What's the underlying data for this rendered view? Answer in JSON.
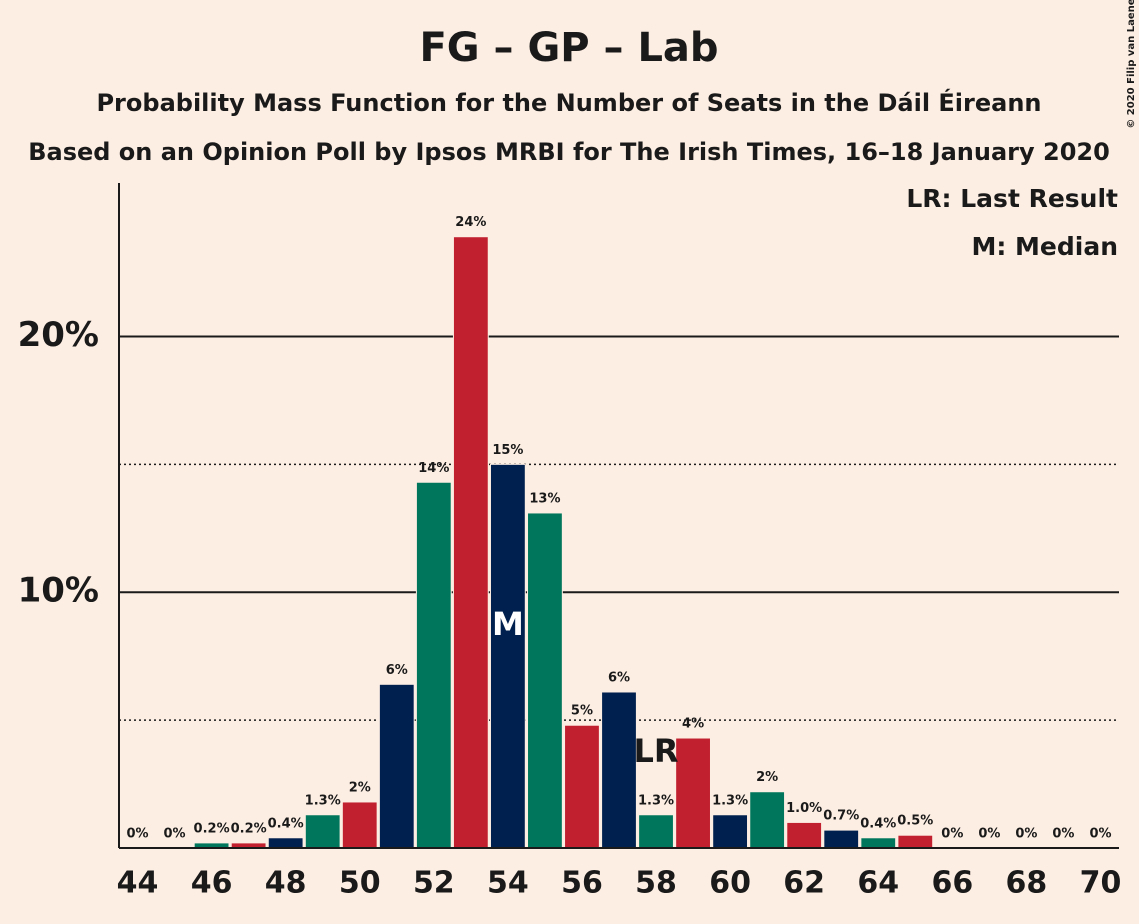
{
  "chart_data": {
    "type": "bar",
    "title": "FG – GP – Lab",
    "subtitle": "Probability Mass Function for the Number of Seats in the Dáil Éireann",
    "subtitle2": "Based on an Opinion Poll by Ipsos MRBI for The Irish Times, 16–18 January 2020",
    "copyright": "© 2020 Filip van Laenen",
    "legend": [
      "LR: Last Result",
      "M: Median"
    ],
    "legend_position": "upper right",
    "x": [
      44,
      45,
      46,
      47,
      48,
      49,
      50,
      51,
      52,
      53,
      54,
      55,
      56,
      57,
      58,
      59,
      60,
      61,
      62,
      63,
      64,
      65,
      66,
      67,
      68,
      69,
      70
    ],
    "values": [
      0,
      0,
      0.2,
      0.2,
      0.4,
      1.3,
      1.8,
      6.4,
      14.3,
      23.9,
      15.0,
      13.1,
      4.8,
      6.1,
      1.3,
      4.3,
      1.3,
      2.2,
      1.0,
      0.7,
      0.4,
      0.5,
      0,
      0,
      0,
      0,
      0
    ],
    "value_labels": [
      "0%",
      "0%",
      "0.2%",
      "0.2%",
      "0.4%",
      "1.3%",
      "2%",
      "6%",
      "14%",
      "24%",
      "15%",
      "13%",
      "5%",
      "6%",
      "1.3%",
      "4%",
      "1.3%",
      "2%",
      "1.0%",
      "0.7%",
      "0.4%",
      "0.5%",
      "0%",
      "0%",
      "0%",
      "0%",
      "0%"
    ],
    "colors": [
      "#c1202f",
      "#00204f",
      "#00775c"
    ],
    "xlim": [
      43.5,
      70.5
    ],
    "xticks": [
      44,
      46,
      48,
      50,
      52,
      54,
      56,
      58,
      60,
      62,
      64,
      66,
      68,
      70
    ],
    "ylim": [
      0,
      26
    ],
    "yticks": [
      {
        "value": 10,
        "label": "10%"
      },
      {
        "value": 20,
        "label": "20%"
      }
    ],
    "minor_yticks": [
      5,
      15
    ],
    "grid": true,
    "markers": [
      {
        "x": 54,
        "label": "M",
        "color": "#ffffff"
      },
      {
        "x": 58,
        "label": "LR",
        "color": "#1a1a1a"
      }
    ]
  }
}
